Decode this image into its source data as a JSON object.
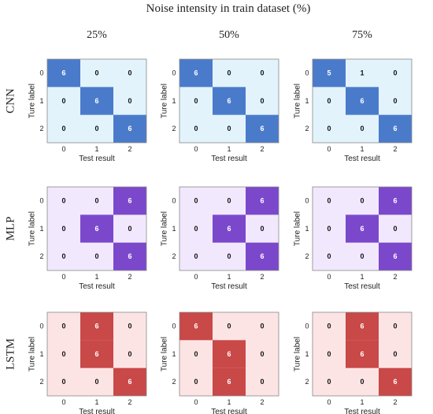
{
  "figure": {
    "title": "Noise intensity in train dataset (%)"
  },
  "columns": [
    "25%",
    "50%",
    "75%"
  ],
  "rows": [
    "CNN",
    "MLP",
    "LSTM"
  ],
  "colors": {
    "CNN": {
      "light": "#e3f3fc",
      "dark": "#4a7bcb"
    },
    "MLP": {
      "light": "#f1e8fd",
      "dark": "#7b48cc"
    },
    "LSTM": {
      "light": "#fde4e4",
      "dark": "#c94848"
    },
    "border": "#888888"
  },
  "chart_data": {
    "type": "heatmap",
    "title": "Noise intensity in train dataset (%)",
    "xlabel": "Test result",
    "ylabel": "Ture label",
    "x_ticks": [
      "0",
      "1",
      "2"
    ],
    "y_ticks": [
      "0",
      "1",
      "2"
    ],
    "matrices": [
      {
        "model": "CNN",
        "noise": "25%",
        "values": [
          [
            6,
            0,
            0
          ],
          [
            0,
            6,
            0
          ],
          [
            0,
            0,
            6
          ]
        ]
      },
      {
        "model": "CNN",
        "noise": "50%",
        "values": [
          [
            6,
            0,
            0
          ],
          [
            0,
            6,
            0
          ],
          [
            0,
            0,
            6
          ]
        ]
      },
      {
        "model": "CNN",
        "noise": "75%",
        "values": [
          [
            5,
            1,
            0
          ],
          [
            0,
            6,
            0
          ],
          [
            0,
            0,
            6
          ]
        ]
      },
      {
        "model": "MLP",
        "noise": "25%",
        "values": [
          [
            0,
            0,
            6
          ],
          [
            0,
            6,
            0
          ],
          [
            0,
            0,
            6
          ]
        ]
      },
      {
        "model": "MLP",
        "noise": "50%",
        "values": [
          [
            0,
            0,
            6
          ],
          [
            0,
            6,
            0
          ],
          [
            0,
            0,
            6
          ]
        ]
      },
      {
        "model": "MLP",
        "noise": "75%",
        "values": [
          [
            0,
            0,
            6
          ],
          [
            0,
            6,
            0
          ],
          [
            0,
            0,
            6
          ]
        ]
      },
      {
        "model": "LSTM",
        "noise": "25%",
        "values": [
          [
            0,
            6,
            0
          ],
          [
            0,
            6,
            0
          ],
          [
            0,
            0,
            6
          ]
        ]
      },
      {
        "model": "LSTM",
        "noise": "50%",
        "values": [
          [
            6,
            0,
            0
          ],
          [
            0,
            6,
            0
          ],
          [
            0,
            6,
            0
          ]
        ]
      },
      {
        "model": "LSTM",
        "noise": "75%",
        "values": [
          [
            0,
            6,
            0
          ],
          [
            0,
            6,
            0
          ],
          [
            0,
            0,
            6
          ]
        ]
      }
    ]
  }
}
